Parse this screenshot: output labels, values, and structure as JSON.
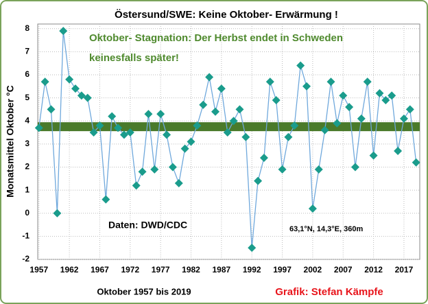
{
  "chart_data": {
    "type": "line",
    "title": "Östersund/SWE:  Keine Oktober- Erwärmung !",
    "annotation_lines": [
      "Oktober- Stagnation: Der Herbst endet in Schweden",
      "keinesfalls später!"
    ],
    "annotation_color": "#4f8a2e",
    "source": "Daten: DWD/CDC",
    "location": "63,1°N, 14,3°E, 360m",
    "ylabel": "Monatsmittel Oktober °C",
    "xlabel": "Oktober 1957 bis 2019",
    "credit": "Grafik: Stefan Kämpfe",
    "credit_color": "#e8141b",
    "x": [
      1957,
      1958,
      1959,
      1960,
      1961,
      1962,
      1963,
      1964,
      1965,
      1966,
      1967,
      1968,
      1969,
      1970,
      1971,
      1972,
      1973,
      1974,
      1975,
      1976,
      1977,
      1978,
      1979,
      1980,
      1981,
      1982,
      1983,
      1984,
      1985,
      1986,
      1987,
      1988,
      1989,
      1990,
      1991,
      1992,
      1993,
      1994,
      1995,
      1996,
      1997,
      1998,
      1999,
      2000,
      2001,
      2002,
      2003,
      2004,
      2005,
      2006,
      2007,
      2008,
      2009,
      2010,
      2011,
      2012,
      2013,
      2014,
      2015,
      2016,
      2017,
      2018,
      2019
    ],
    "series": [
      {
        "color": "#6fa8dc",
        "marker_color": "#1a9c8c",
        "values": [
          3.7,
          5.7,
          4.5,
          0.0,
          7.9,
          5.8,
          5.4,
          5.1,
          5.0,
          3.5,
          3.8,
          0.6,
          4.2,
          3.7,
          3.4,
          3.5,
          1.2,
          1.8,
          4.3,
          1.9,
          4.3,
          3.4,
          2.0,
          1.3,
          2.8,
          3.1,
          3.8,
          4.7,
          5.9,
          4.4,
          5.4,
          3.5,
          4.0,
          4.5,
          3.3,
          -1.5,
          1.4,
          2.4,
          5.7,
          4.9,
          1.9,
          3.3,
          3.8,
          6.4,
          5.5,
          0.2,
          1.9,
          3.6,
          5.7,
          3.9,
          5.1,
          4.6,
          2.0,
          4.1,
          5.7,
          2.5,
          5.2,
          4.9,
          5.1,
          2.7,
          4.1,
          4.5,
          2.2
        ]
      }
    ],
    "trend": {
      "color": "#4a7a2a",
      "values": [
        3.75,
        3.75
      ]
    },
    "xlim": [
      1956.8,
      2019.6
    ],
    "xticks": [
      1957,
      1962,
      1967,
      1972,
      1977,
      1982,
      1987,
      1992,
      1997,
      2002,
      2007,
      2012,
      2017
    ],
    "ylim": [
      -2,
      8.2
    ],
    "yticks": [
      -2,
      -1,
      0,
      1,
      2,
      3,
      4,
      5,
      6,
      7,
      8
    ],
    "grid": true
  }
}
